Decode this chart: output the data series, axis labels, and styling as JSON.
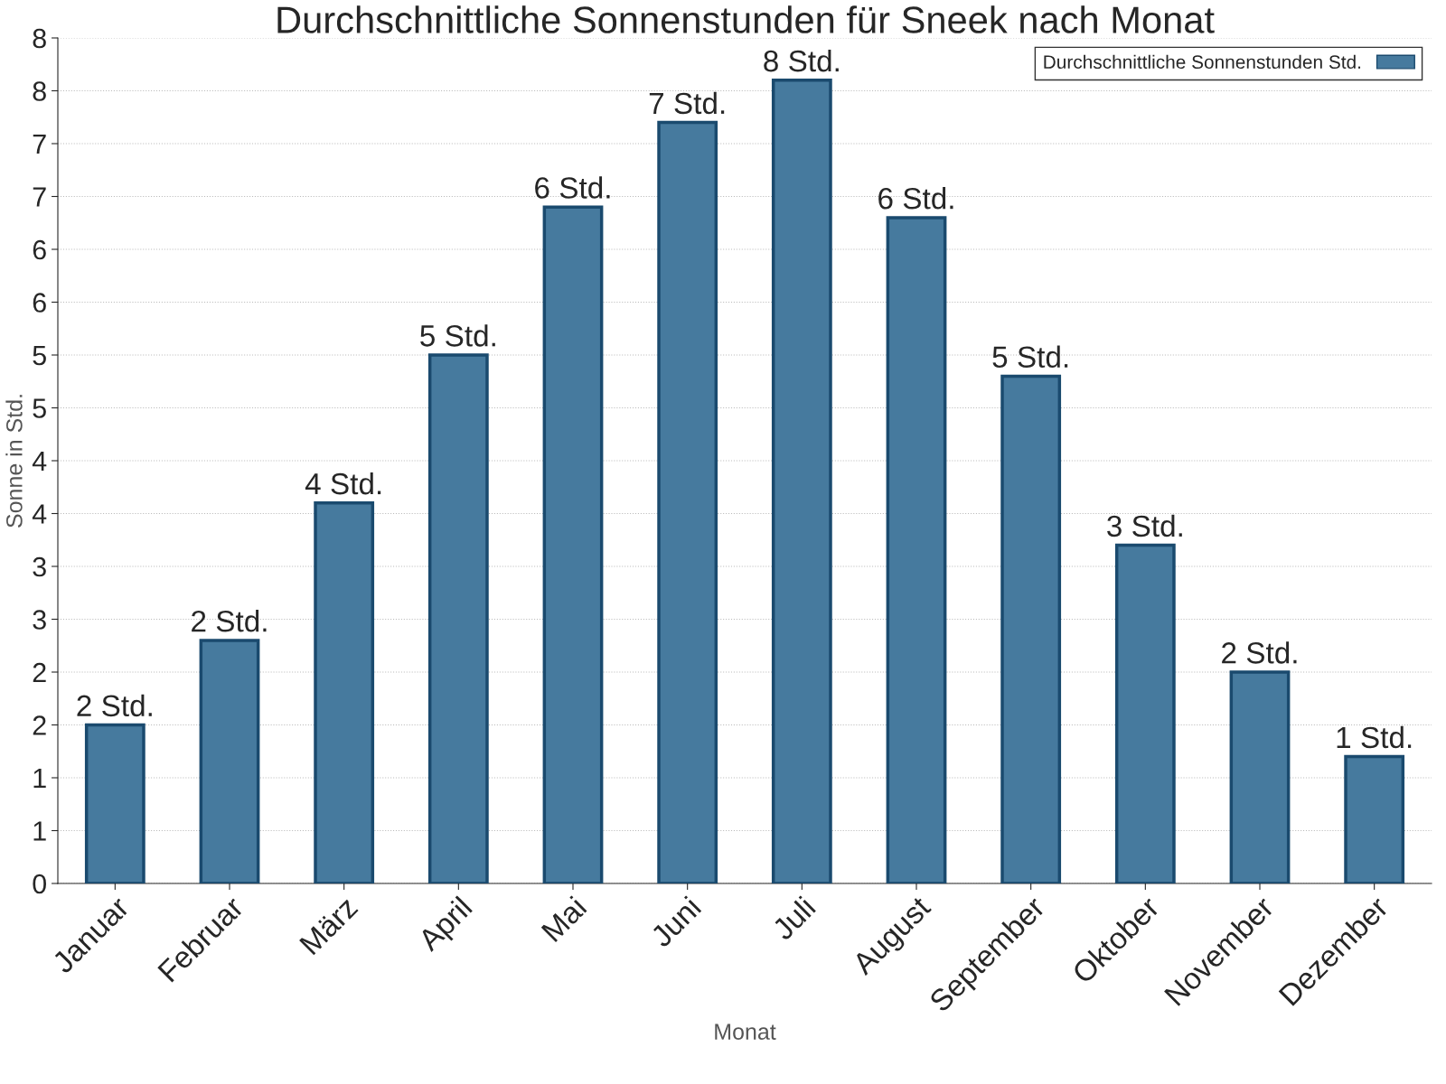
{
  "chart_data": {
    "type": "bar",
    "title": "Durchschnittliche Sonnenstunden für Sneek nach Monat",
    "xlabel": "Monat",
    "ylabel": "Sonne in Std.",
    "categories": [
      "Januar",
      "Februar",
      "März",
      "April",
      "Mai",
      "Juni",
      "Juli",
      "August",
      "September",
      "Oktober",
      "November",
      "Dezember"
    ],
    "series": [
      {
        "name": "Durchschnittliche Sonnenstunden Std.",
        "color": "#467a9e",
        "values": [
          1.5,
          2.3,
          3.6,
          5.0,
          6.4,
          7.2,
          7.6,
          6.3,
          4.8,
          3.2,
          2.0,
          1.2
        ],
        "value_labels": [
          "2 Std.",
          "2 Std.",
          "4 Std.",
          "5 Std.",
          "6 Std.",
          "7 Std.",
          "8 Std.",
          "6 Std.",
          "5 Std.",
          "3 Std.",
          "2 Std.",
          "1 Std."
        ]
      }
    ],
    "ylim": [
      0,
      8
    ],
    "yticks": [
      0,
      {
        "value": 0.5,
        "label": "1"
      },
      1,
      {
        "value": 1.5,
        "label": "2"
      },
      2,
      {
        "value": 2.5,
        "label": "3"
      },
      3,
      {
        "value": 3.5,
        "label": "4"
      },
      4,
      {
        "value": 4.5,
        "label": "5"
      },
      5,
      {
        "value": 5.5,
        "label": "6"
      },
      6,
      {
        "value": 6.5,
        "label": "7"
      },
      7,
      {
        "value": 7.5,
        "label": "8"
      },
      8
    ],
    "grid": "y",
    "legend": "top right"
  }
}
